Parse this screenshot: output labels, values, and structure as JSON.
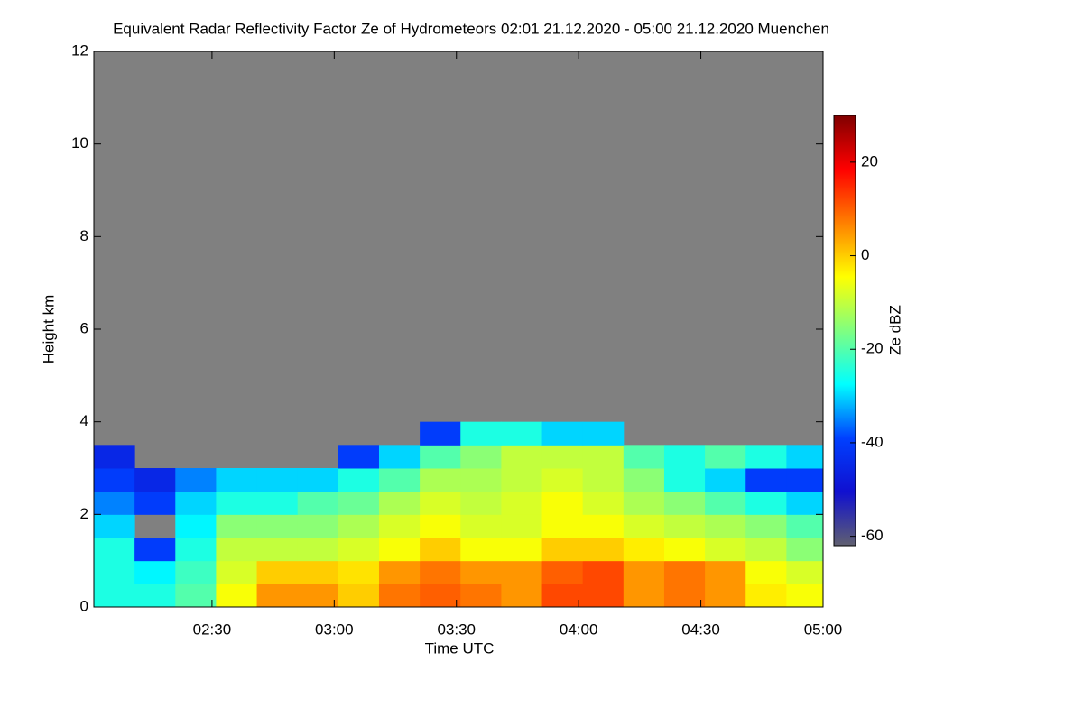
{
  "chart_data": {
    "type": "heatmap",
    "title": "Equivalent Radar Reflectivity Factor Ze of Hydrometeors   02:01 21.12.2020 - 05:00 21.12.2020 Muenchen",
    "xlabel": "Time UTC",
    "ylabel": "Height km",
    "colorbar_label": "Ze dBZ",
    "xlim": [
      121,
      300
    ],
    "xticks": [
      {
        "value": 150,
        "label": "02:30"
      },
      {
        "value": 180,
        "label": "03:00"
      },
      {
        "value": 210,
        "label": "03:30"
      },
      {
        "value": 240,
        "label": "04:00"
      },
      {
        "value": 270,
        "label": "04:30"
      },
      {
        "value": 300,
        "label": "05:00"
      }
    ],
    "ylim": [
      0,
      12
    ],
    "yticks": [
      0,
      2,
      4,
      6,
      8,
      10,
      12
    ],
    "clim": [
      -62,
      30
    ],
    "cticks": [
      -60,
      -40,
      -20,
      0,
      20
    ],
    "colormap": [
      "#606070",
      "#1010d0",
      "#0040ff",
      "#00ffff",
      "#80ff80",
      "#ffff00",
      "#ff8000",
      "#ff0000",
      "#800000"
    ],
    "background": "#808080",
    "x_edges": [
      121,
      131,
      141,
      151,
      161,
      171,
      181,
      191,
      201,
      211,
      221,
      231,
      241,
      251,
      261,
      271,
      281,
      291,
      300
    ],
    "y_edges": [
      0,
      0.5,
      1,
      1.5,
      2,
      2.5,
      3,
      3.5,
      4
    ],
    "z": [
      [
        -25,
        -25,
        -20,
        -5,
        5,
        5,
        0,
        8,
        10,
        8,
        5,
        12,
        12,
        5,
        8,
        5,
        -3,
        -5
      ],
      [
        -25,
        -28,
        -22,
        -8,
        0,
        0,
        -2,
        5,
        8,
        5,
        5,
        10,
        12,
        5,
        8,
        5,
        -5,
        -8
      ],
      [
        -25,
        -40,
        -25,
        -10,
        -10,
        -10,
        -8,
        -5,
        0,
        -5,
        -5,
        0,
        0,
        -3,
        -5,
        -8,
        -10,
        -15
      ],
      [
        -30,
        null,
        -28,
        -15,
        -15,
        -15,
        -12,
        -8,
        -5,
        -8,
        -8,
        -5,
        -5,
        -8,
        -10,
        -12,
        -15,
        -20
      ],
      [
        -35,
        -40,
        -30,
        -25,
        -25,
        -20,
        -18,
        -12,
        -8,
        -10,
        -8,
        -5,
        -8,
        -12,
        -15,
        -20,
        -25,
        -30
      ],
      [
        -40,
        -45,
        -35,
        -30,
        -30,
        -30,
        -25,
        -20,
        -12,
        -12,
        -10,
        -8,
        -10,
        -15,
        -25,
        -30,
        -40,
        -40
      ],
      [
        -45,
        null,
        null,
        null,
        null,
        null,
        -40,
        -30,
        -20,
        -15,
        -10,
        -10,
        -10,
        -20,
        -25,
        -20,
        -25,
        -30
      ],
      [
        null,
        null,
        null,
        null,
        null,
        null,
        null,
        null,
        -40,
        -25,
        -25,
        -30,
        -30,
        null,
        null,
        null,
        null,
        null
      ]
    ]
  }
}
